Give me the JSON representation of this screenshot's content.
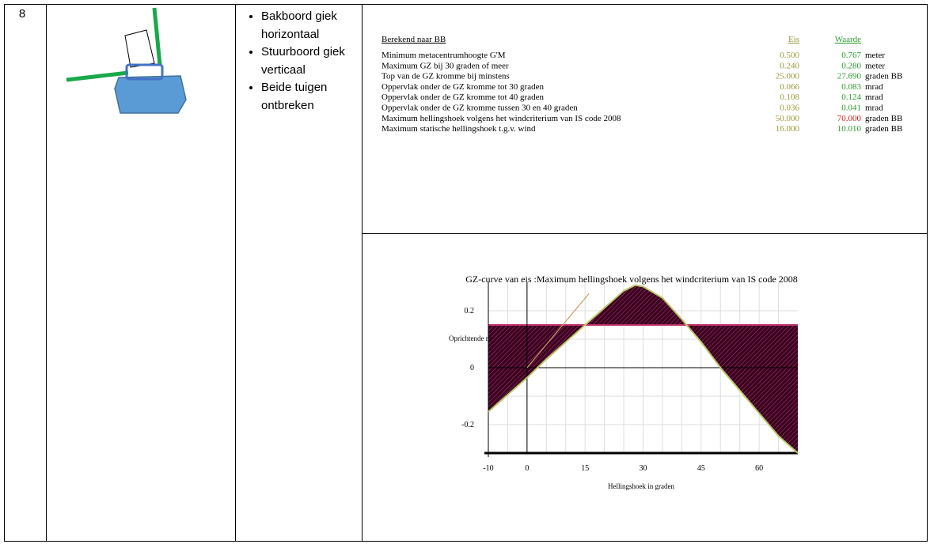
{
  "row_number": "8",
  "bullets": [
    "Bakboord giek horizontaal",
    "Stuurboord giek verticaal",
    "Beide tuigen ontbreken"
  ],
  "criteria": {
    "header": {
      "label": "Berekend naar BB",
      "eis": "Eis",
      "waarde": "Waarde"
    },
    "rows": [
      {
        "label": "Minimum metacentrumhoogte G'M",
        "eis": "0.500",
        "waarde": "0.767",
        "unit": "meter",
        "color": "#2e9a2e"
      },
      {
        "label": "Maximum GZ bij 30 graden of meer",
        "eis": "0.240",
        "waarde": "0.280",
        "unit": "meter",
        "color": "#2e9a2e"
      },
      {
        "label": "Top van de GZ kromme bij minstens",
        "eis": "25.000",
        "waarde": "27.690",
        "unit": "graden BB",
        "color": "#2e9a2e"
      },
      {
        "label": "Oppervlak onder de GZ kromme tot 30 graden",
        "eis": "0.066",
        "waarde": "0.083",
        "unit": "mrad",
        "color": "#2e9a2e"
      },
      {
        "label": "Oppervlak onder de GZ kromme tot 40 graden",
        "eis": "0.108",
        "waarde": "0.124",
        "unit": "mrad",
        "color": "#2e9a2e"
      },
      {
        "label": "Oppervlak onder de GZ kromme tussen 30 en 40 graden",
        "eis": "0.036",
        "waarde": "0.041",
        "unit": "mrad",
        "color": "#2e9a2e"
      },
      {
        "label": "Maximum hellingshoek volgens het windcriterium van IS code 2008",
        "eis": "50.000",
        "waarde": "70.000",
        "unit": "graden BB",
        "color": "#d02020"
      },
      {
        "label": "Maximum statische hellingshoek t.g.v. wind",
        "eis": "16.000",
        "waarde": "10.010",
        "unit": "graden BB",
        "color": "#2e9a2e"
      }
    ]
  },
  "chart_data": {
    "type": "line",
    "title": "GZ-curve van eis :Maximum hellingshoek volgens het windcriterium van IS code 2008",
    "x_label": "Hellingshoek in graden",
    "y_label": "Oprichtende m",
    "xlim": [
      -10,
      70
    ],
    "ylim": [
      -0.3,
      0.3
    ],
    "xticks": [
      -10,
      0,
      15,
      30,
      45,
      60
    ],
    "yticks": [
      -0.2,
      0,
      0.2
    ],
    "minor_xticks": [
      -5,
      5,
      10,
      20,
      25,
      35,
      40,
      50,
      55,
      65
    ],
    "minor_yticks": [
      -0.1,
      0.1
    ],
    "series": [
      {
        "color": "#b8c86a",
        "x": [
          -10,
          -5,
          0,
          5,
          10,
          15,
          20,
          25,
          28,
          30,
          35,
          40,
          45,
          50,
          55,
          60,
          65,
          70
        ],
        "values": [
          -0.155,
          -0.095,
          -0.035,
          0.03,
          0.09,
          0.15,
          0.21,
          0.27,
          0.29,
          0.285,
          0.245,
          0.17,
          0.09,
          0.0,
          -0.08,
          -0.16,
          -0.24,
          -0.3
        ]
      },
      {
        "color": "#c8a060",
        "x": [
          0,
          16
        ],
        "values": [
          0.0,
          0.26
        ]
      }
    ],
    "reference_line": {
      "value": 0.15,
      "color": "#c0306a"
    },
    "fill_color": "#4a0a2a"
  }
}
